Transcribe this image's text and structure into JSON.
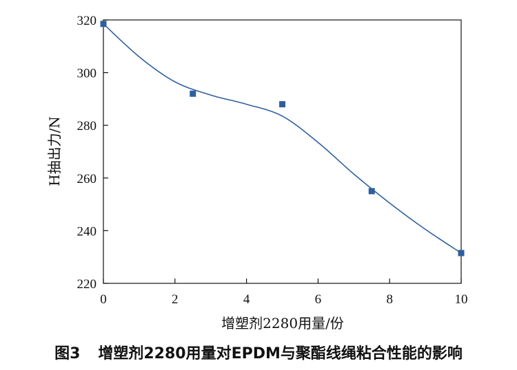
{
  "figure": {
    "number": "图3",
    "caption": "增塑剂2280用量对EPDM与聚酯线绳粘合性能的影响"
  },
  "chart_data": {
    "type": "scatter",
    "xlabel": "增塑剂2280用量/份",
    "ylabel": "H抽出力/N",
    "xlim": [
      0,
      10
    ],
    "ylim": [
      220,
      320
    ],
    "xticks": [
      0,
      2,
      4,
      6,
      8,
      10
    ],
    "yticks": [
      220,
      240,
      260,
      280,
      300,
      320
    ],
    "grid": false,
    "series": [
      {
        "x": [
          0,
          2.5,
          5,
          7.5,
          10
        ],
        "y": [
          318.5,
          292,
          288,
          255,
          231.5
        ],
        "marker": "square",
        "color": "#2e5f9e",
        "fit": "smooth",
        "fit_curve": {
          "x": [
            0,
            1,
            2,
            3,
            4,
            5,
            6,
            7,
            8,
            9,
            10
          ],
          "y": [
            318.5,
            306,
            296.5,
            291.5,
            288,
            283.5,
            273.5,
            261.5,
            250.5,
            240.5,
            231.5
          ]
        }
      }
    ]
  }
}
